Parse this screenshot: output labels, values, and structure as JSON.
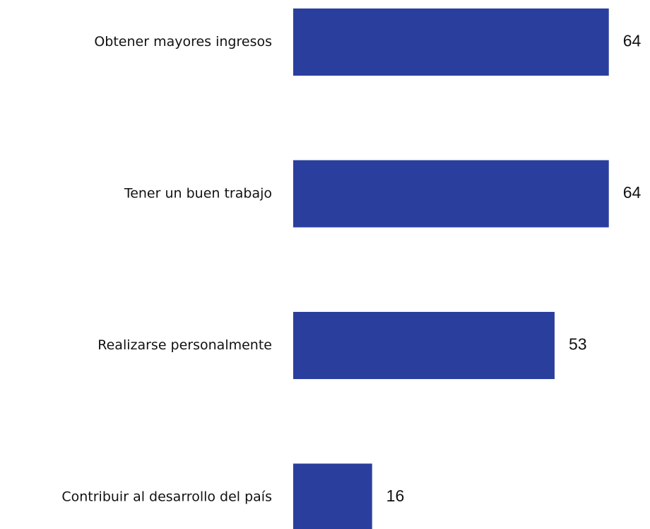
{
  "chart_data": {
    "type": "hbar",
    "categories": [
      "Obtener mayores ingresos",
      "Tener un buen trabajo",
      "Realizarse personalmente",
      "Contribuir al desarrollo del país"
    ],
    "values": [
      64,
      64,
      53,
      16
    ],
    "color": "#2a3f9d"
  }
}
